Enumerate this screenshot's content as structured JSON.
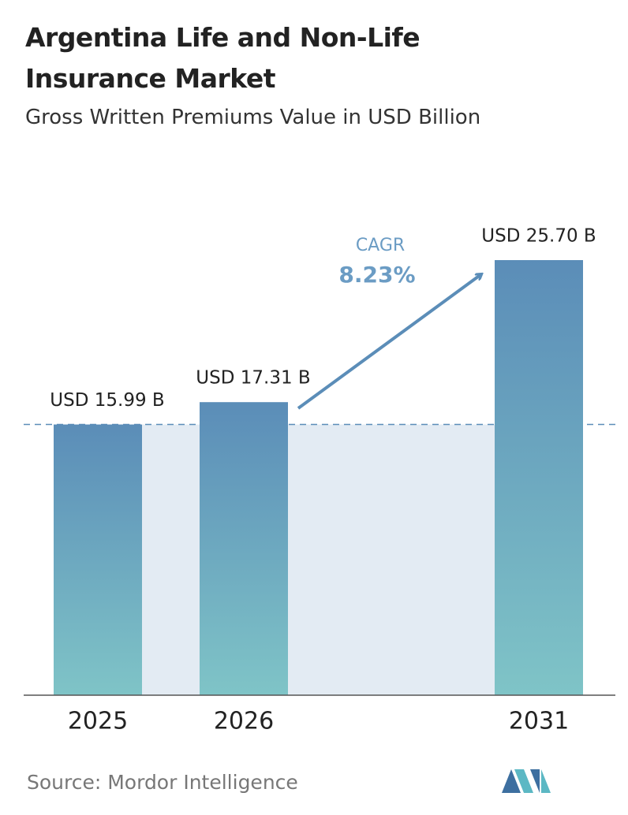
{
  "chart_data": {
    "type": "bar",
    "title": "Argentina Life and Non-Life Insurance Market",
    "subtitle": "Gross Written Premiums Value in USD Billion",
    "categories": [
      "2025",
      "2026",
      "2031"
    ],
    "values": [
      15.99,
      17.31,
      25.7
    ],
    "value_labels": [
      "USD 15.99 B",
      "USD 17.31 B",
      "USD 25.70 B"
    ],
    "annotation": {
      "label": "CAGR",
      "value": "8.23%"
    },
    "source": "Source:  Mordor Intelligence",
    "color_top": "#5b8db8",
    "color_bottom": "#7fc4c7"
  }
}
